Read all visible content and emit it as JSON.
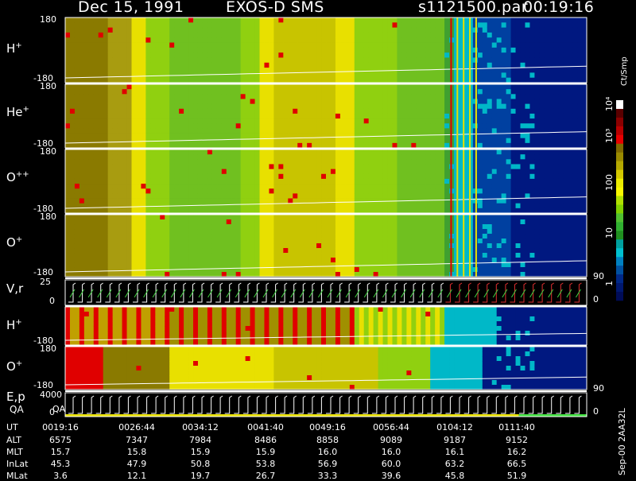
{
  "header": {
    "date": "Dec 15, 1991",
    "instrument": "EXOS-D SMS",
    "file": "s1121500.par",
    "time": "00:19:16"
  },
  "panels": [
    {
      "label": "H",
      "sup": "+",
      "top": "180",
      "bottom": "-180"
    },
    {
      "label": "He",
      "sup": "+",
      "top": "180",
      "bottom": "-180"
    },
    {
      "label": "O",
      "sup": "++",
      "top": "180",
      "bottom": "-180"
    },
    {
      "label": "O",
      "sup": "+",
      "top": "180",
      "bottom": "-180"
    },
    {
      "label": "V,r",
      "sup": "",
      "top": "25",
      "bottom": "0"
    },
    {
      "label": "H",
      "sup": "+",
      "top": "",
      "bottom": "-180"
    },
    {
      "label": "O",
      "sup": "+",
      "top": "180",
      "bottom": "-180"
    },
    {
      "label": "E,p",
      "sup": "",
      "top": "4000",
      "bottom": "0"
    }
  ],
  "qa_label": "QA",
  "right_ticks": [
    {
      "text": "90"
    },
    {
      "text": "0"
    },
    {
      "text": "90"
    },
    {
      "text": "0"
    }
  ],
  "colorbar": {
    "unit": "Ct/Smp",
    "labels": [
      "10⁴",
      "10³",
      "100",
      "10",
      "1"
    ],
    "colors": [
      "#ffffff",
      "#5a0000",
      "#8b0000",
      "#b80000",
      "#e80000",
      "#806a00",
      "#9a8a00",
      "#b4a800",
      "#d4c800",
      "#ecec00",
      "#f8f800",
      "#b0e000",
      "#80d000",
      "#50c030",
      "#30b030",
      "#209020",
      "#00a0a0",
      "#00c0d0",
      "#0080c0",
      "#0050a0",
      "#002888",
      "#001870",
      "#000c58"
    ]
  },
  "footer_note": "Sep-00 2AA32L",
  "table": {
    "columns": [
      "0019:16",
      "0026:44",
      "0034:12",
      "0041:40",
      "0049:16",
      "0056:44",
      "0104:12",
      "0111:40"
    ],
    "rows": [
      {
        "label": "UT",
        "values": [
          "0019:16",
          "0026:44",
          "0034:12",
          "0041:40",
          "0049:16",
          "0056:44",
          "0104:12",
          "0111:40"
        ]
      },
      {
        "label": "ALT",
        "values": [
          "6575",
          "7347",
          "7984",
          "8486",
          "8858",
          "9089",
          "9187",
          "9152"
        ]
      },
      {
        "label": "MLT",
        "values": [
          "15.7",
          "15.8",
          "15.9",
          "15.9",
          "16.0",
          "16.0",
          "16.1",
          "16.2"
        ]
      },
      {
        "label": "InLat",
        "values": [
          "45.3",
          "47.9",
          "50.8",
          "53.8",
          "56.9",
          "60.0",
          "63.2",
          "66.5"
        ]
      },
      {
        "label": "MLat",
        "values": [
          "3.6",
          "12.1",
          "19.7",
          "26.7",
          "33.3",
          "39.6",
          "45.8",
          "51.9"
        ]
      }
    ]
  },
  "chart_data": {
    "type": "heatmap",
    "title": "Dec 15, 1991   EXOS-D SMS",
    "x_ticks": [
      "0019:16",
      "0026:44",
      "0034:12",
      "0041:40",
      "0049:16",
      "0056:44",
      "0104:12",
      "0111:40"
    ],
    "panels": [
      "H+",
      "He+",
      "O++",
      "O+",
      "V,r",
      "H+",
      "O+",
      "E,p"
    ],
    "y_range_angle": [
      -180,
      180
    ],
    "y_range_vr": [
      0,
      25
    ],
    "y_range_ep": [
      0,
      4000
    ],
    "colorscale": "Ct/Smp",
    "colorscale_range": [
      1,
      10000
    ],
    "log_scale": true
  }
}
